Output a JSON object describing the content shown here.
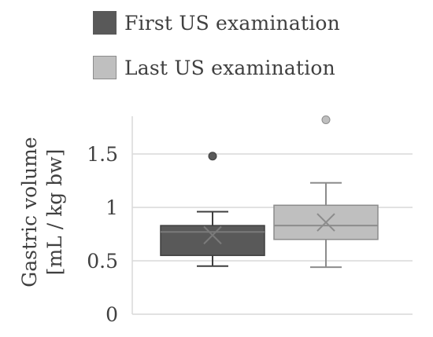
{
  "chart_data": {
    "type": "box",
    "ylabel": "Gastric volume [mL / kg bw]",
    "ylabel_lines": [
      "Gastric volume",
      "[mL / kg bw]"
    ],
    "yticks": [
      "0",
      "0.5",
      "1",
      "1.5"
    ],
    "ylim": [
      0,
      1.9
    ],
    "grid": true,
    "legend_position": "top",
    "series": [
      {
        "name": "First US examination",
        "color": "#595959",
        "whisker_low": 0.45,
        "q1": 0.55,
        "median": 0.77,
        "q3": 0.83,
        "whisker_high": 0.96,
        "mean": 0.74,
        "outliers": [
          1.48
        ]
      },
      {
        "name": "Last US examination",
        "color": "#bfbfbf",
        "whisker_low": 0.44,
        "q1": 0.7,
        "median": 0.83,
        "q3": 1.02,
        "whisker_high": 1.23,
        "mean": 0.86,
        "outliers": [
          1.82
        ]
      }
    ]
  }
}
